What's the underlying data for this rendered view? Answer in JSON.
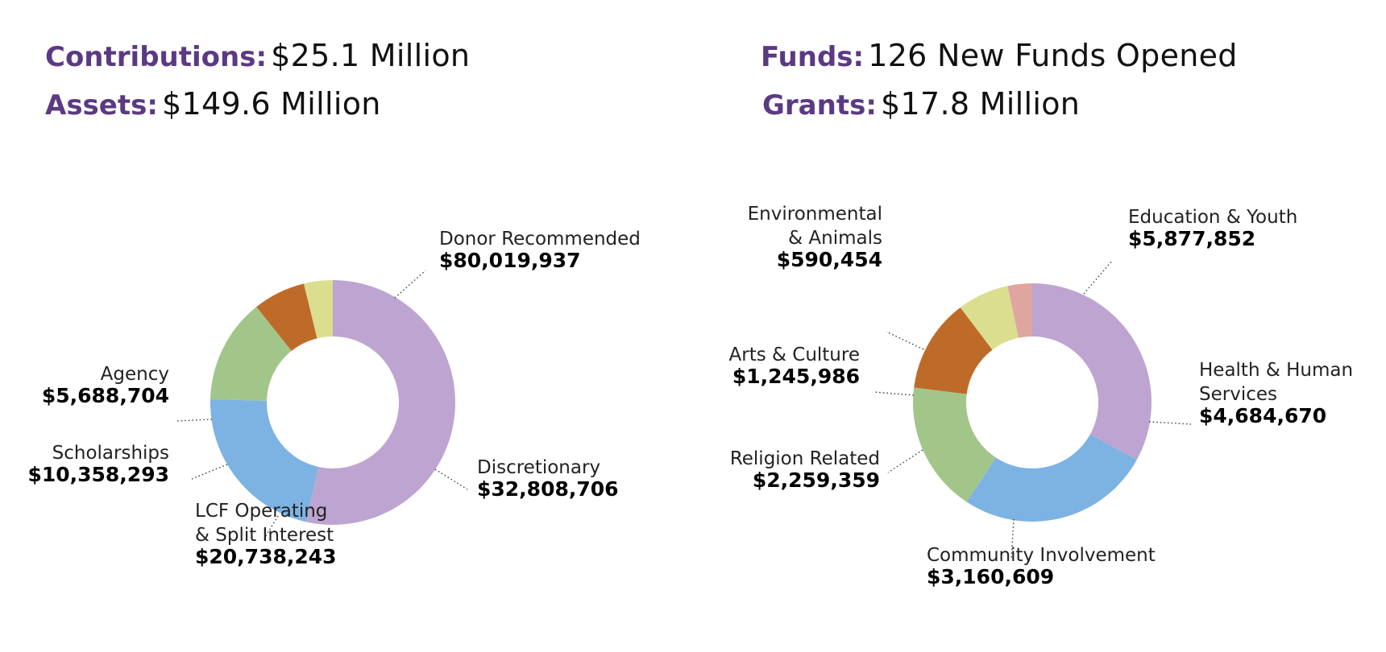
{
  "summary": {
    "contributions": {
      "label": "Contributions:",
      "value": "$25.1 Million"
    },
    "assets": {
      "label": "Assets:",
      "value": "$149.6 Million"
    },
    "funds": {
      "label": "Funds:",
      "value": "126 New Funds Opened"
    },
    "grants": {
      "label": "Grants:",
      "value": "$17.8 Million"
    }
  },
  "chart_data": [
    {
      "type": "pie",
      "title": "",
      "slices": [
        {
          "label": [
            "Donor Recommended"
          ],
          "value": 80019937,
          "value_label": "$80,019,937",
          "color": "#bea5d1"
        },
        {
          "label": [
            "Discretionary"
          ],
          "value": 32808706,
          "value_label": "$32,808,706",
          "color": "#7db3e2"
        },
        {
          "label": [
            "LCF Operating",
            "& Split Interest"
          ],
          "value": 20738243,
          "value_label": "$20,738,243",
          "color": "#a2c68a"
        },
        {
          "label": [
            "Scholarships"
          ],
          "value": 10358293,
          "value_label": "$10,358,293",
          "color": "#be6b2a"
        },
        {
          "label": [
            "Agency"
          ],
          "value": 5688704,
          "value_label": "$5,688,704",
          "color": "#dbde8e"
        }
      ]
    },
    {
      "type": "pie",
      "title": "",
      "slices": [
        {
          "label": [
            "Education & Youth"
          ],
          "value": 5877852,
          "value_label": "$5,877,852",
          "color": "#bea5d1"
        },
        {
          "label": [
            "Health & Human",
            "Services"
          ],
          "value": 4684670,
          "value_label": "$4,684,670",
          "color": "#7db3e2"
        },
        {
          "label": [
            "Community Involvement"
          ],
          "value": 3160609,
          "value_label": "$3,160,609",
          "color": "#a2c68a"
        },
        {
          "label": [
            "Religion Related"
          ],
          "value": 2259359,
          "value_label": "$2,259,359",
          "color": "#be6b2a"
        },
        {
          "label": [
            "Arts & Culture"
          ],
          "value": 1245986,
          "value_label": "$1,245,986",
          "color": "#dbde8e"
        },
        {
          "label": [
            "Environmental",
            "& Animals"
          ],
          "value": 590454,
          "value_label": "$590,454",
          "color": "#dea69e"
        }
      ]
    }
  ]
}
